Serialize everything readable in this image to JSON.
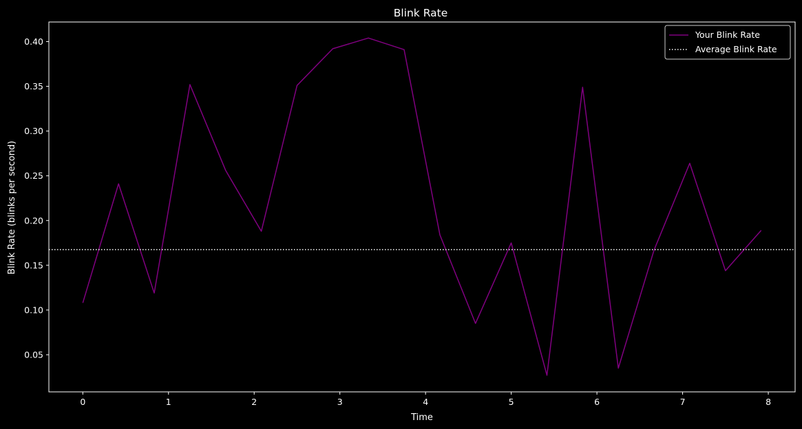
{
  "chart_data": {
    "type": "line",
    "title": "Blink Rate",
    "xlabel": "Time",
    "ylabel": "Blink Rate (blinks per second)",
    "xlim": [
      -0.396,
      8.313
    ],
    "ylim": [
      0.0085,
      0.4219
    ],
    "xticks": [
      0,
      1,
      2,
      3,
      4,
      5,
      6,
      7,
      8
    ],
    "xtick_labels": [
      "0",
      "1",
      "2",
      "3",
      "4",
      "5",
      "6",
      "7",
      "8"
    ],
    "yticks": [
      0.05,
      0.1,
      0.15,
      0.2,
      0.25,
      0.3,
      0.35,
      0.4
    ],
    "ytick_labels": [
      "0.05",
      "0.10",
      "0.15",
      "0.20",
      "0.25",
      "0.30",
      "0.35",
      "0.40"
    ],
    "grid": false,
    "legend_position": "top-right",
    "background_color": "#000000",
    "series": [
      {
        "name": "Your Blink Rate",
        "color": "#800080",
        "style": "solid",
        "x": [
          0,
          0.417,
          0.833,
          1.25,
          1.667,
          2.083,
          2.5,
          2.917,
          3.333,
          3.75,
          4.167,
          4.583,
          5.0,
          5.417,
          5.833,
          6.25,
          6.667,
          7.083,
          7.5,
          7.917
        ],
        "values": [
          0.108,
          0.241,
          0.119,
          0.352,
          0.256,
          0.188,
          0.351,
          0.392,
          0.404,
          0.391,
          0.184,
          0.085,
          0.175,
          0.027,
          0.349,
          0.035,
          0.167,
          0.264,
          0.144,
          0.189
        ]
      },
      {
        "name": "Average Blink Rate",
        "color": "#ffffff",
        "style": "dotted",
        "type": "hline",
        "value": 0.1675
      }
    ]
  }
}
